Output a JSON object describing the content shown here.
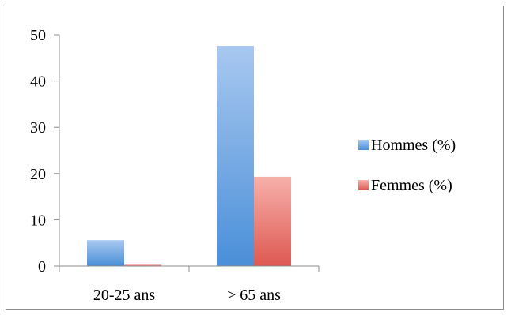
{
  "chart_data": {
    "type": "bar",
    "title": "",
    "xlabel": "",
    "ylabel": "",
    "categories": [
      "20-25 ans",
      "> 65 ans"
    ],
    "series": [
      {
        "name": "Hommes (%)",
        "values": [
          5.6,
          47.6
        ],
        "color": "#5b9bd5",
        "color_light": "#a8c8f0",
        "color_dark": "#4a8fd8"
      },
      {
        "name": "Femmes (%)",
        "values": [
          0.3,
          19.3
        ],
        "color": "#e0605a",
        "color_light": "#f7b0aa",
        "color_dark": "#de5852"
      }
    ],
    "ylim": [
      0,
      50
    ],
    "yticks": [
      0,
      10,
      20,
      30,
      40,
      50
    ],
    "grid": false,
    "legend_position": "right"
  }
}
